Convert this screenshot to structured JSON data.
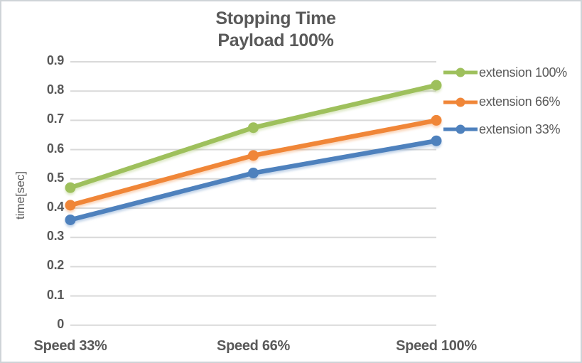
{
  "chart_data": {
    "type": "line",
    "title": "Stopping Time",
    "subtitle": "Payload 100%",
    "categories": [
      "Speed 33%",
      "Speed 66%",
      "Speed 100%"
    ],
    "series": [
      {
        "name": "extension 100%",
        "color": "#9EC05C",
        "values": [
          0.47,
          0.675,
          0.82
        ]
      },
      {
        "name": "extension 66%",
        "color": "#F08638",
        "values": [
          0.41,
          0.58,
          0.7
        ]
      },
      {
        "name": "extension 33%",
        "color": "#4E81BD",
        "values": [
          0.36,
          0.52,
          0.63
        ]
      }
    ],
    "xlabel": "",
    "ylabel": "time[sec]",
    "ylim": [
      0,
      0.9
    ],
    "ytick_step": 0.1,
    "ytick_labels": [
      "0",
      "0.1",
      "0.2",
      "0.3",
      "0.4",
      "0.5",
      "0.6",
      "0.7",
      "0.8",
      "0.9"
    ],
    "grid": true,
    "legend_position": "right",
    "marker": "circle"
  },
  "colors": {
    "text": "#595959",
    "gridline": "#D9D9D9",
    "background": "#FFFFFF",
    "frame_border": "#CFD4D8"
  }
}
